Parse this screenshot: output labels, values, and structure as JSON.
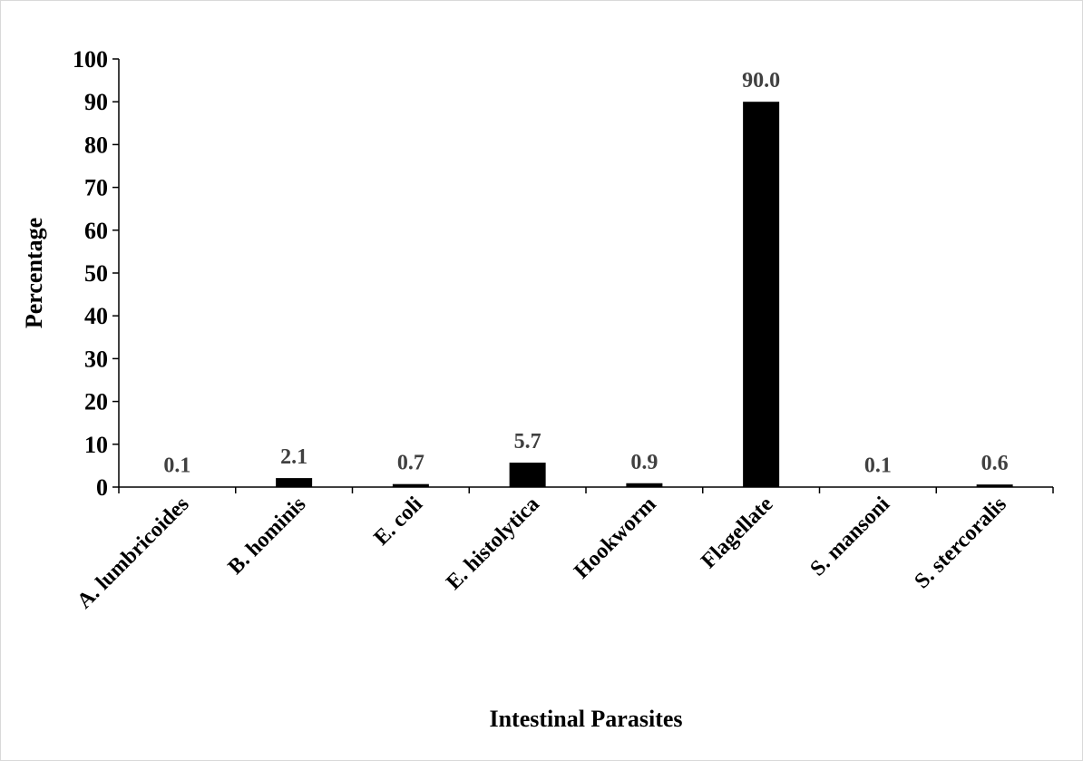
{
  "chart_data": {
    "type": "bar",
    "title": "",
    "xlabel": "Intestinal Parasites",
    "ylabel": "Percentage",
    "ylim": [
      0,
      100
    ],
    "yticks": [
      0,
      10,
      20,
      30,
      40,
      50,
      60,
      70,
      80,
      90,
      100
    ],
    "grid": false,
    "legend": "none",
    "bar_color": "#000000",
    "data_label_color": "#404040",
    "categories": [
      "A. lumbricoides",
      "B. hominis",
      "E. coli",
      "E. histolytica",
      "Hookworm",
      "Flagellate",
      "S. mansoni",
      "S. stercoralis"
    ],
    "values": [
      0.1,
      2.1,
      0.7,
      5.7,
      0.9,
      90.0,
      0.1,
      0.6
    ],
    "data_labels": [
      "0.1",
      "2.1",
      "0.7",
      "5.7",
      "0.9",
      "90.0",
      "0.1",
      "0.6"
    ]
  }
}
